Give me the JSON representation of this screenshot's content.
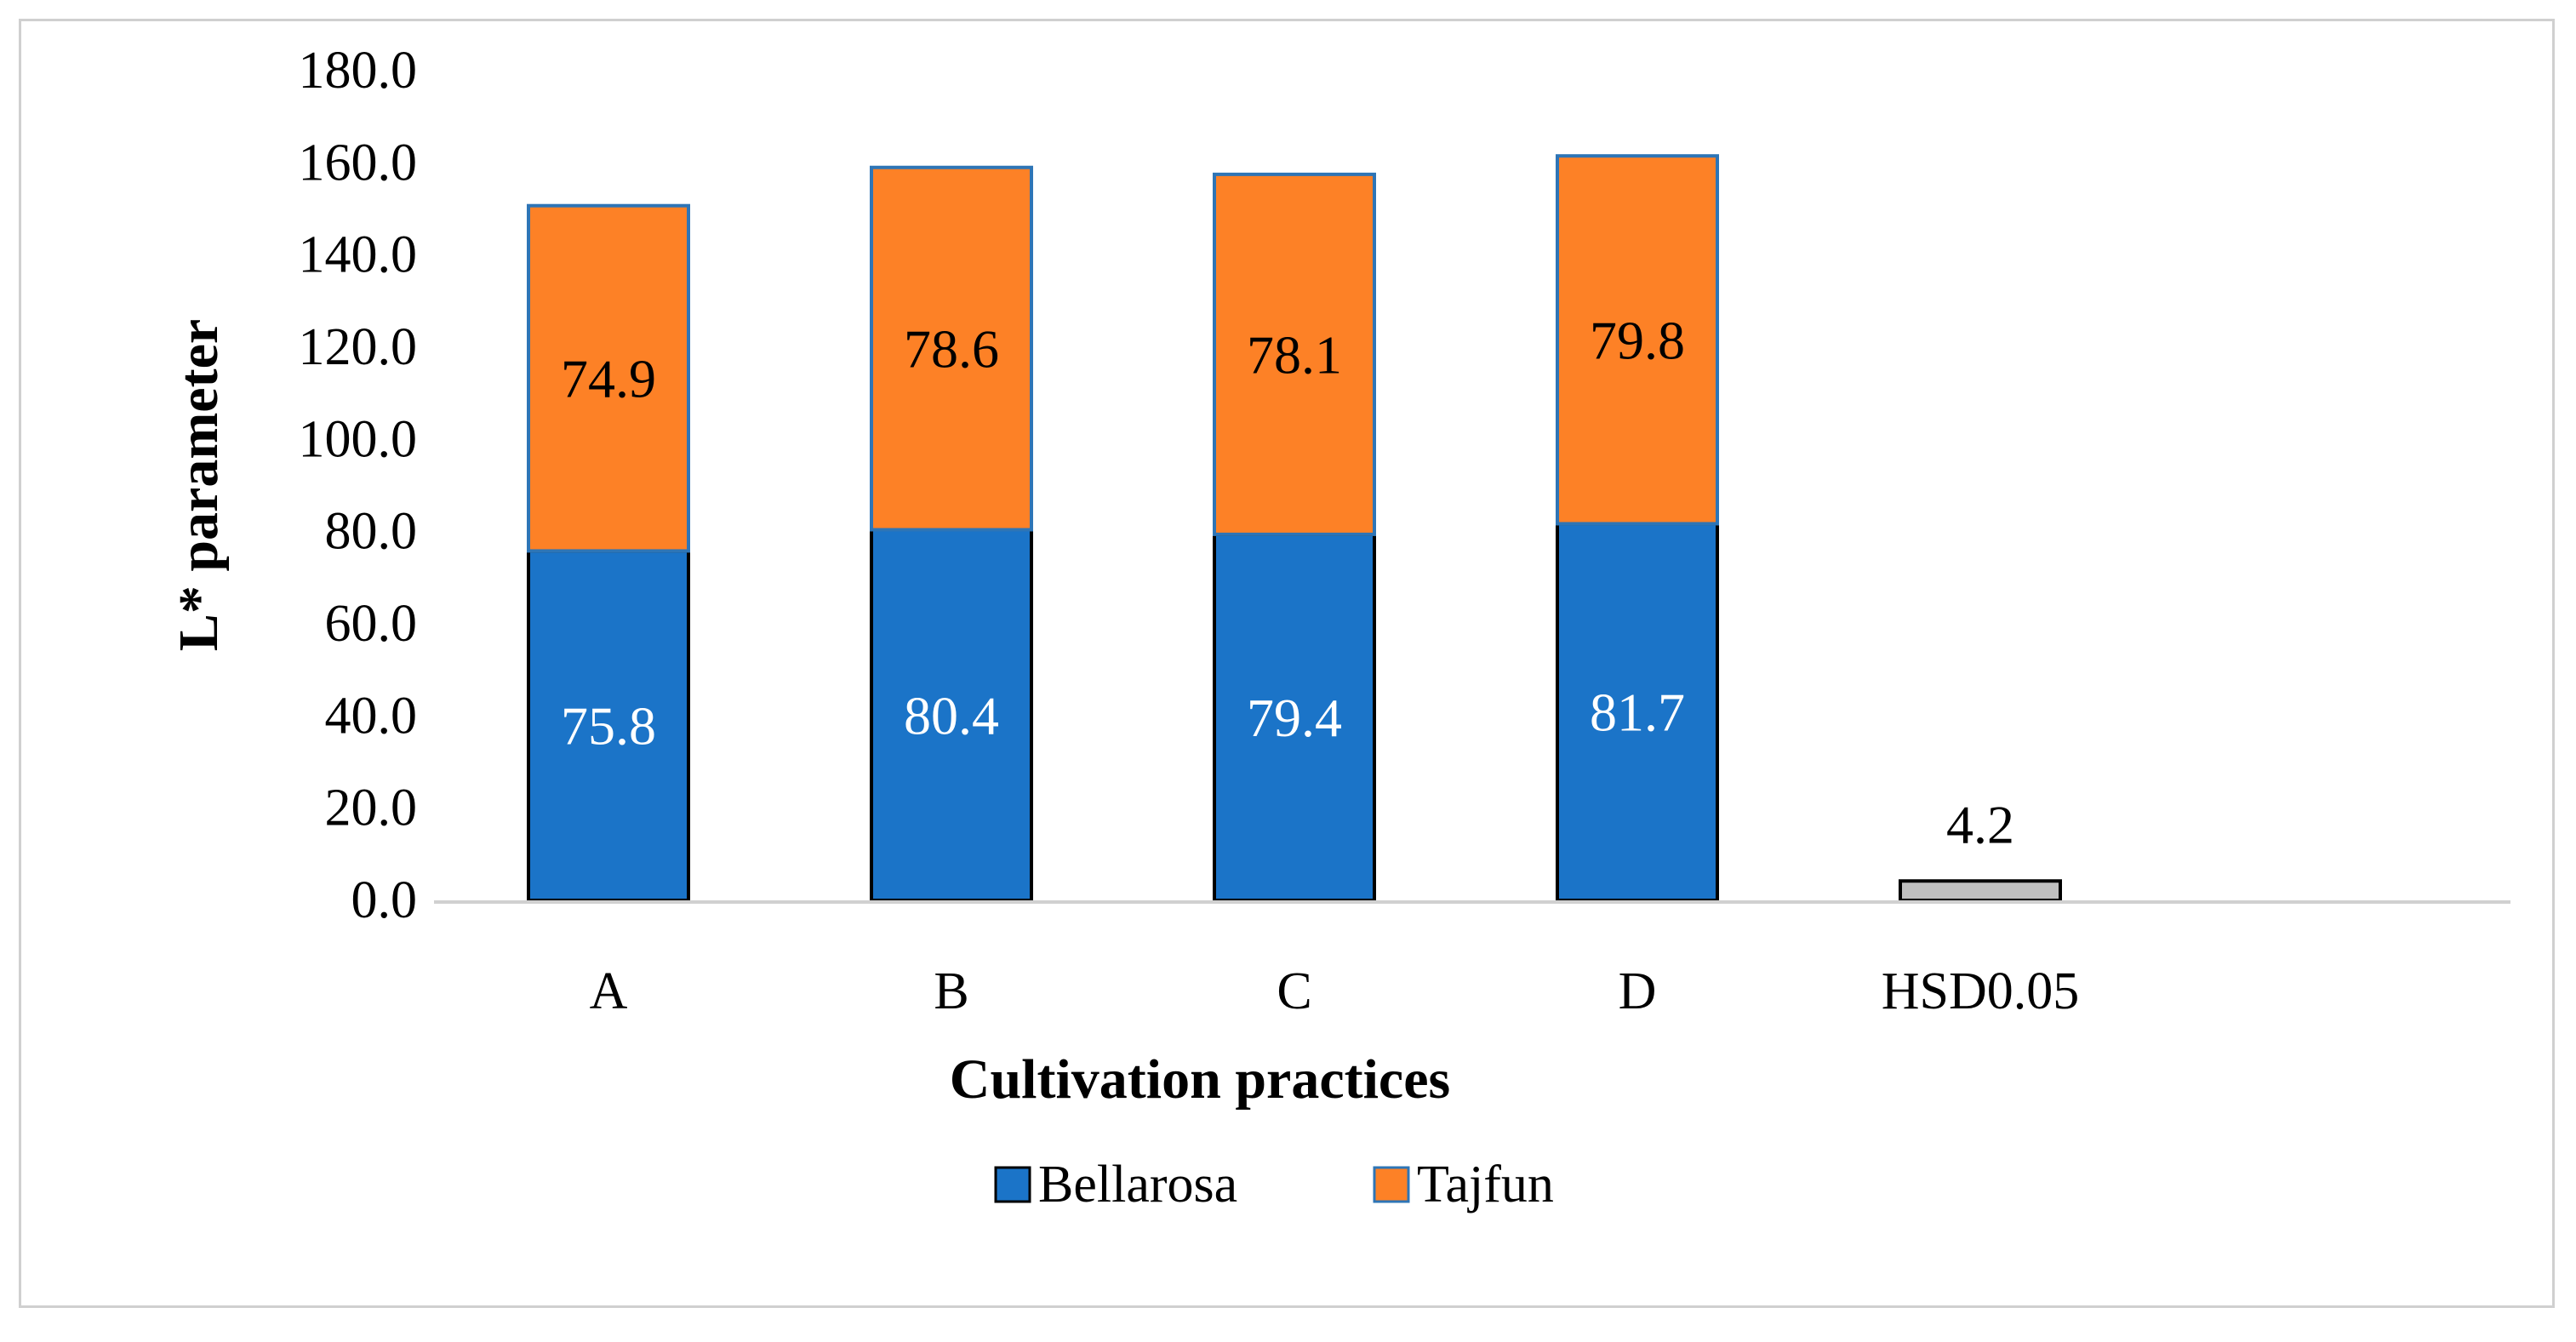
{
  "chart_data": {
    "type": "bar",
    "stacked": true,
    "title": "",
    "xlabel": "Cultivation practices",
    "ylabel": "L* parameter",
    "ylim": [
      0,
      180
    ],
    "yticks": [
      "0.0",
      "20.0",
      "40.0",
      "60.0",
      "80.0",
      "100.0",
      "120.0",
      "140.0",
      "160.0",
      "180.0"
    ],
    "categories": [
      "A",
      "B",
      "C",
      "D",
      "HSD0.05"
    ],
    "series": [
      {
        "name": "Bellarosa",
        "color": "#1b74c8",
        "label_color": "#ffffff",
        "values": [
          75.8,
          80.4,
          79.4,
          81.7,
          null
        ],
        "labels": [
          "75.8",
          "80.4",
          "79.4",
          "81.7",
          ""
        ]
      },
      {
        "name": "Tajfun",
        "color": "#fd8126",
        "label_color": "#000000",
        "values": [
          74.9,
          78.6,
          78.1,
          79.8,
          null
        ],
        "labels": [
          "74.9",
          "78.6",
          "78.1",
          "79.8",
          ""
        ]
      },
      {
        "name": "HSD",
        "color": "#bfbfbf",
        "label_color": "#000000",
        "values": [
          null,
          null,
          null,
          null,
          4.2
        ],
        "labels": [
          "",
          "",
          "",
          "",
          "4.2"
        ]
      }
    ],
    "legend": {
      "position": "bottom",
      "entries": [
        "Bellarosa",
        "Tajfun"
      ]
    },
    "grid": false
  }
}
